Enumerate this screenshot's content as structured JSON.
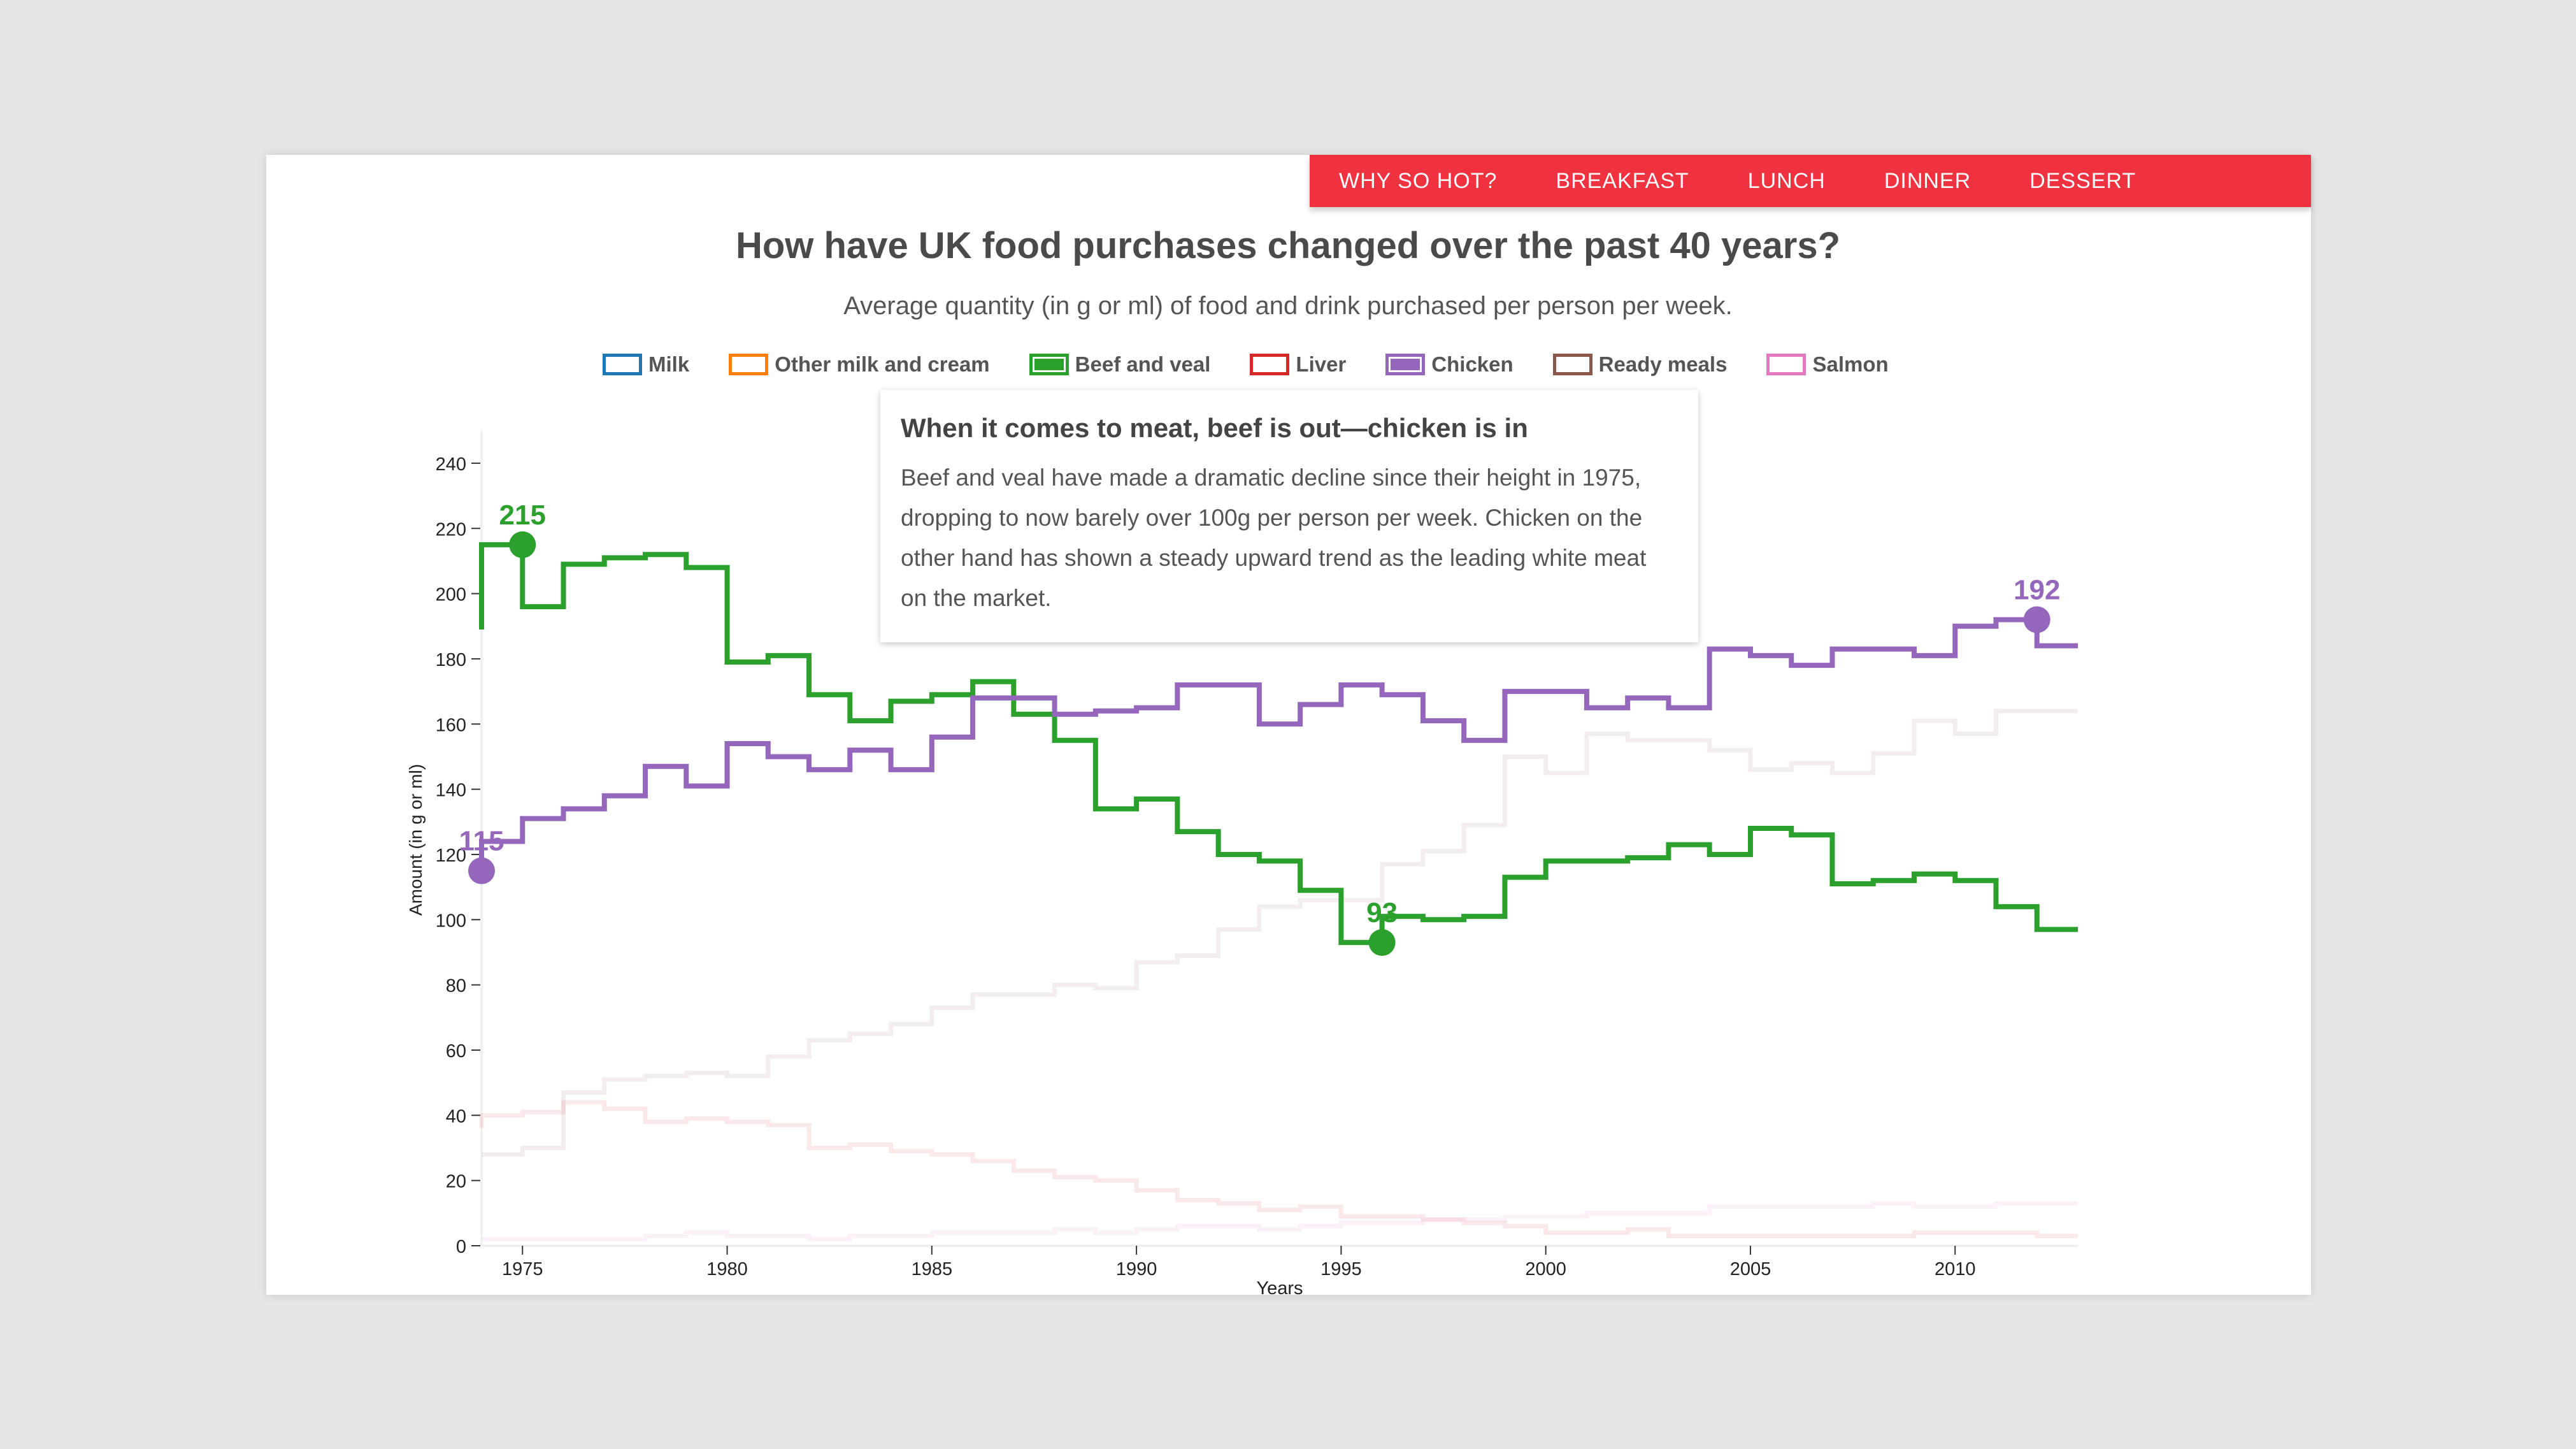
{
  "nav": {
    "items": [
      "WHY SO HOT?",
      "BREAKFAST",
      "LUNCH",
      "DINNER",
      "DESSERT"
    ],
    "color": "#f0313f"
  },
  "tooltip": {
    "title": "When it comes to meat, beef is out—chicken is in",
    "body": "Beef and veal have made a dramatic decline since their height in 1975, dropping to now barely over 100g per person per week. Chicken on the other hand has shown a steady upward trend as the leading white meat on the market."
  },
  "chart_data": {
    "type": "line",
    "title": "How have UK food purchases changed over the past 40 years?",
    "subtitle": "Average quantity (in g or ml) of food and drink purchased per person per week.",
    "xlabel": "Years",
    "ylabel": "Amount (in g or ml)",
    "xlim": [
      1974,
      2013
    ],
    "ylim": [
      0,
      250
    ],
    "yticks": [
      0,
      20,
      40,
      60,
      80,
      100,
      120,
      140,
      160,
      180,
      200,
      220,
      240
    ],
    "xticks": [
      1975,
      1980,
      1985,
      1990,
      1995,
      2000,
      2005,
      2010
    ],
    "legend": [
      {
        "name": "Milk",
        "color": "#1f77b4",
        "filled": false
      },
      {
        "name": "Other milk and cream",
        "color": "#ff7f0e",
        "filled": false
      },
      {
        "name": "Beef and veal",
        "color": "#2ca02c",
        "filled": true
      },
      {
        "name": "Liver",
        "color": "#d62728",
        "filled": false
      },
      {
        "name": "Chicken",
        "color": "#9467bd",
        "filled": true
      },
      {
        "name": "Ready meals",
        "color": "#8c564b",
        "filled": false
      },
      {
        "name": "Salmon",
        "color": "#e377c2",
        "filled": false
      }
    ],
    "x": [
      1974,
      1975,
      1976,
      1977,
      1978,
      1979,
      1980,
      1981,
      1982,
      1983,
      1984,
      1985,
      1986,
      1987,
      1988,
      1989,
      1990,
      1991,
      1992,
      1993,
      1994,
      1995,
      1996,
      1997,
      1998,
      1999,
      2000,
      2001,
      2002,
      2003,
      2004,
      2005,
      2006,
      2007,
      2008,
      2009,
      2010,
      2011,
      2012,
      2013
    ],
    "series": [
      {
        "name": "Ready meals",
        "color": "#8c564b",
        "highlighted": false,
        "values": [
          28,
          28,
          30,
          47,
          51,
          52,
          53,
          52,
          58,
          63,
          65,
          68,
          73,
          77,
          77,
          80,
          79,
          87,
          89,
          97,
          104,
          106,
          106,
          117,
          121,
          129,
          150,
          145,
          157,
          155,
          155,
          152,
          146,
          148,
          145,
          151,
          161,
          157,
          164,
          164
        ]
      },
      {
        "name": "Liver",
        "color": "#d62728",
        "highlighted": false,
        "values": [
          36,
          40,
          41,
          44,
          42,
          38,
          39,
          38,
          37,
          30,
          31,
          29,
          28,
          26,
          23,
          21,
          20,
          17,
          14,
          13,
          11,
          12,
          9,
          9,
          8,
          7,
          6,
          4,
          4,
          5,
          3,
          3,
          3,
          3,
          3,
          3,
          4,
          4,
          4,
          3
        ]
      },
      {
        "name": "Salmon",
        "color": "#e377c2",
        "highlighted": false,
        "values": [
          2,
          2,
          2,
          2,
          2,
          3,
          4,
          3,
          3,
          2,
          3,
          3,
          4,
          4,
          4,
          5,
          4,
          5,
          6,
          6,
          5,
          6,
          7,
          7,
          8,
          8,
          9,
          9,
          10,
          10,
          10,
          12,
          12,
          12,
          12,
          13,
          12,
          12,
          13,
          13
        ]
      },
      {
        "name": "Beef and veal",
        "color": "#2ca02c",
        "highlighted": true,
        "values": [
          189,
          215,
          196,
          209,
          211,
          212,
          208,
          179,
          181,
          169,
          161,
          167,
          169,
          173,
          163,
          155,
          134,
          137,
          127,
          120,
          118,
          109,
          93,
          101,
          100,
          101,
          113,
          118,
          118,
          119,
          123,
          120,
          128,
          126,
          111,
          112,
          114,
          112,
          104,
          97
        ]
      },
      {
        "name": "Chicken",
        "color": "#9467bd",
        "highlighted": true,
        "values": [
          115,
          124,
          131,
          134,
          138,
          147,
          141,
          154,
          150,
          146,
          152,
          146,
          156,
          168,
          168,
          163,
          164,
          165,
          172,
          172,
          160,
          166,
          172,
          169,
          161,
          155,
          170,
          170,
          165,
          168,
          165,
          183,
          181,
          178,
          183,
          183,
          181,
          190,
          192,
          184
        ]
      }
    ],
    "annotations": [
      {
        "series": "Beef and veal",
        "x": 1975,
        "label": "215"
      },
      {
        "series": "Beef and veal",
        "x": 1996,
        "label": "93"
      },
      {
        "series": "Chicken",
        "x": 1974,
        "label": "115"
      },
      {
        "series": "Chicken",
        "x": 2012,
        "label": "192"
      }
    ]
  }
}
